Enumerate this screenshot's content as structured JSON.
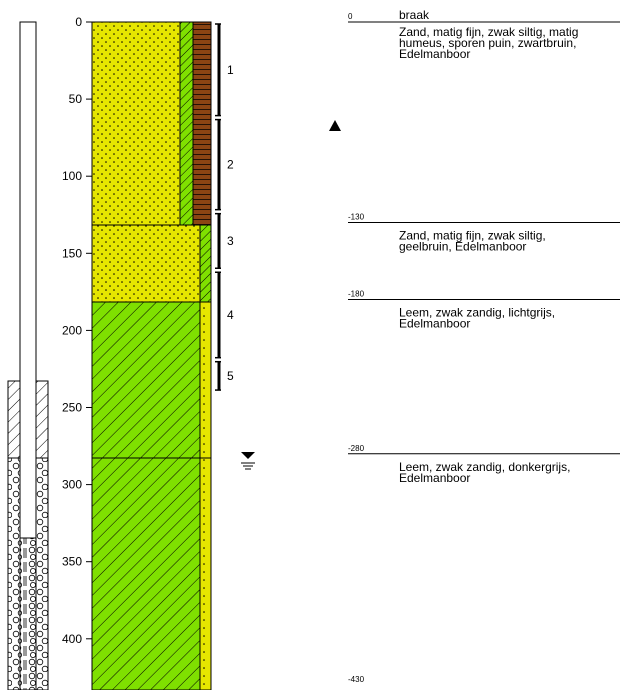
{
  "depth_scale": {
    "min": 0,
    "max": 430,
    "ticks": [
      0,
      50,
      100,
      150,
      200,
      250,
      300,
      350,
      400
    ],
    "tick_labels": [
      "0",
      "50",
      "100",
      "150",
      "200",
      "250",
      "300",
      "350",
      "400"
    ]
  },
  "layers": [
    {
      "from": 0,
      "to": 130,
      "label": "0",
      "description": [
        "braak",
        "Zand, matig fijn, zwak siltig, matig",
        "humeus, sporen puin, zwartbruin,",
        "Edelmanboor"
      ]
    },
    {
      "from": 130,
      "to": 180,
      "label": "-130",
      "description": [
        "Zand, matig fijn, zwak siltig,",
        "geelbruin, Edelmanboor"
      ]
    },
    {
      "from": 180,
      "to": 280,
      "label": "-180",
      "description": [
        "Leem, zwak zandig, lichtgrijs,",
        "Edelmanboor"
      ]
    },
    {
      "from": 280,
      "to": 430,
      "label": "-280",
      "description": [
        "Leem, zwak zandig, donkergrijs,",
        "Edelmanboor"
      ]
    }
  ],
  "end_depth_label": "-430",
  "samples": [
    {
      "label": "1",
      "from": 0,
      "to": 62
    },
    {
      "label": "2",
      "from": 62,
      "to": 123
    },
    {
      "label": "3",
      "from": 123,
      "to": 161
    },
    {
      "label": "4",
      "from": 161,
      "to": 219
    },
    {
      "label": "5",
      "from": 219,
      "to": 240
    }
  ],
  "colors": {
    "sand": "#e6e600",
    "silt": "#80e000",
    "humus": "#8b4513",
    "loam": "#7fe000"
  },
  "markers": {
    "triangle_depth": 80,
    "water_level_depth": 280
  }
}
